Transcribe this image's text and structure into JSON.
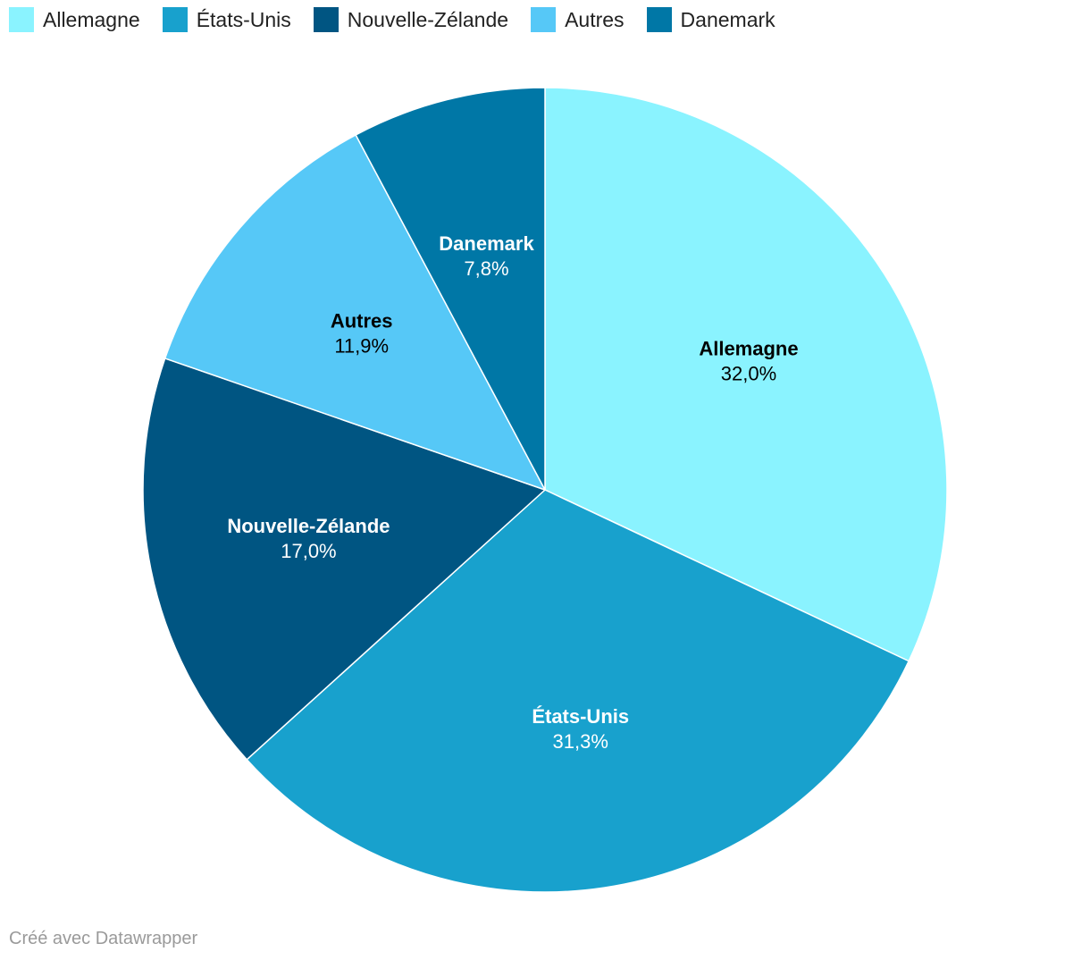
{
  "chart_data": {
    "type": "pie",
    "title": "",
    "categories": [
      "Allemagne",
      "États-Unis",
      "Nouvelle-Zélande",
      "Autres",
      "Danemark"
    ],
    "values": [
      32.0,
      31.3,
      17.0,
      11.9,
      7.8
    ],
    "value_labels": [
      "32,0%",
      "31,3%",
      "17,0%",
      "11,9%",
      "7,8%"
    ],
    "unit": "%",
    "start": "12 o'clock, clockwise",
    "legend_position": "top-left",
    "colors": [
      "#8af3ff",
      "#18a1cd",
      "#005582",
      "#56c8f7",
      "#0077a6"
    ],
    "label_colors": [
      "#000000",
      "#ffffff",
      "#ffffff",
      "#000000",
      "#ffffff"
    ]
  },
  "footer": {
    "credit": "Créé avec Datawrapper"
  }
}
